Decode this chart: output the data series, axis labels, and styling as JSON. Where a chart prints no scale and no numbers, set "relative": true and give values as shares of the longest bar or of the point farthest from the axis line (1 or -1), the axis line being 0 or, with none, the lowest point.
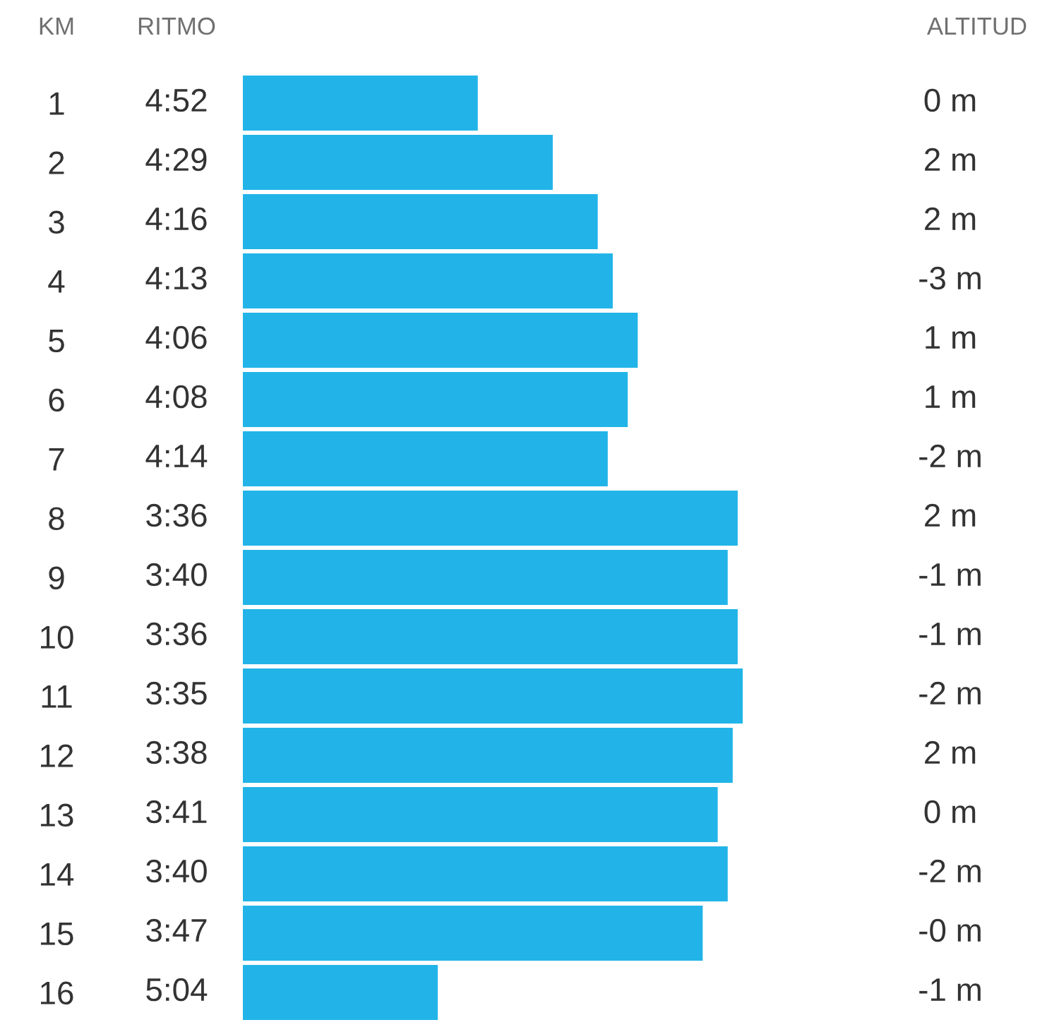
{
  "chart_data": {
    "type": "bar",
    "orientation": "horizontal",
    "relative": true,
    "color": "#22b4e8",
    "xlabel": "RITMO",
    "ylabel": "KM",
    "tick_labels": "y",
    "categories": [
      "1",
      "2",
      "3",
      "4",
      "5",
      "6",
      "7",
      "8",
      "9",
      "10",
      "11",
      "12",
      "13",
      "14",
      "15",
      "16"
    ],
    "values": [
      0.47,
      0.62,
      0.71,
      0.74,
      0.79,
      0.77,
      0.73,
      0.99,
      0.97,
      0.99,
      1,
      0.98,
      0.95,
      0.97,
      0.92,
      0.39
    ],
    "annotations": [
      "ALTITUD",
      "4:52",
      "0 m",
      "4:29",
      "2 m",
      "4:16",
      "2 m",
      "4:13",
      "-3 m",
      "4:06",
      "1 m",
      "4:08",
      "1 m",
      "4:14",
      "-2 m",
      "3:36",
      "2 m",
      "3:40",
      "-1 m",
      "3:36",
      "-1 m",
      "3:35",
      "-2 m",
      "3:38",
      "2 m",
      "3:41",
      "0 m",
      "3:40",
      "-2 m",
      "3:47",
      "-0 m",
      "5:04",
      "-1 m"
    ]
  }
}
